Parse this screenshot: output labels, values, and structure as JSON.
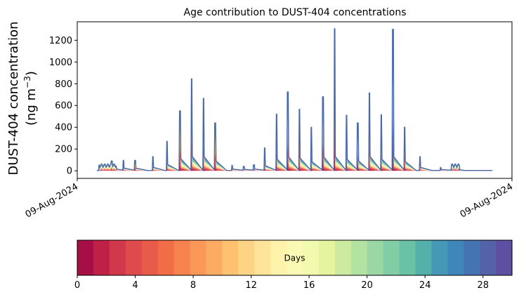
{
  "chart_data": {
    "type": "area",
    "title": "Age contribution to DUST-404 concentrations",
    "ylabel_line1": "DUST-404 concentration",
    "ylabel_unit_prefix": "(ng m",
    "ylabel_unit_exp": "−3",
    "ylabel_unit_suffix": ")",
    "yticks": [
      0,
      200,
      400,
      600,
      800,
      1000,
      1200
    ],
    "ylim": [
      -70,
      1370
    ],
    "xtick_labels": [
      "09-Aug-2024",
      "09-Aug-2024"
    ],
    "peaks": [
      {
        "t": 0.205,
        "v": 270
      },
      {
        "t": 0.235,
        "v": 550
      },
      {
        "t": 0.262,
        "v": 845
      },
      {
        "t": 0.289,
        "v": 665
      },
      {
        "t": 0.316,
        "v": 440
      },
      {
        "t": 0.43,
        "v": 210
      },
      {
        "t": 0.457,
        "v": 520
      },
      {
        "t": 0.483,
        "v": 725
      },
      {
        "t": 0.51,
        "v": 565
      },
      {
        "t": 0.537,
        "v": 400
      },
      {
        "t": 0.564,
        "v": 680
      },
      {
        "t": 0.591,
        "v": 1305
      },
      {
        "t": 0.618,
        "v": 510
      },
      {
        "t": 0.644,
        "v": 440
      },
      {
        "t": 0.671,
        "v": 715
      },
      {
        "t": 0.698,
        "v": 515
      },
      {
        "t": 0.725,
        "v": 1300
      },
      {
        "t": 0.752,
        "v": 400
      },
      {
        "t": 0.787,
        "v": 130
      }
    ],
    "small_peaks": [
      {
        "t": 0.078,
        "v": 90
      },
      {
        "t": 0.105,
        "v": 95
      },
      {
        "t": 0.132,
        "v": 95
      },
      {
        "t": 0.173,
        "v": 130
      },
      {
        "t": 0.355,
        "v": 50
      },
      {
        "t": 0.382,
        "v": 40
      },
      {
        "t": 0.405,
        "v": 55
      },
      {
        "t": 0.835,
        "v": 30
      },
      {
        "t": 0.862,
        "v": 40
      }
    ],
    "colorbar": {
      "label": "Days",
      "ticks": [
        0,
        4,
        8,
        12,
        16,
        20,
        24,
        28
      ],
      "min": 0,
      "max": 30,
      "colors": [
        "#a50f46",
        "#bf2046",
        "#d1384b",
        "#df4a4c",
        "#e85a49",
        "#f16d45",
        "#f6834e",
        "#f99858",
        "#fcac62",
        "#fdc170",
        "#fdd385",
        "#fee499",
        "#fff2ab",
        "#fbf9b3",
        "#f2faaf",
        "#e4f49f",
        "#cdeba0",
        "#b4e2a1",
        "#9bd7a4",
        "#81cda5",
        "#69c2a5",
        "#54b1aa",
        "#4598b6",
        "#3f87bb",
        "#4673b2",
        "#5462a8",
        "#5e4fa2"
      ]
    },
    "line_color": "#4a67a8"
  }
}
